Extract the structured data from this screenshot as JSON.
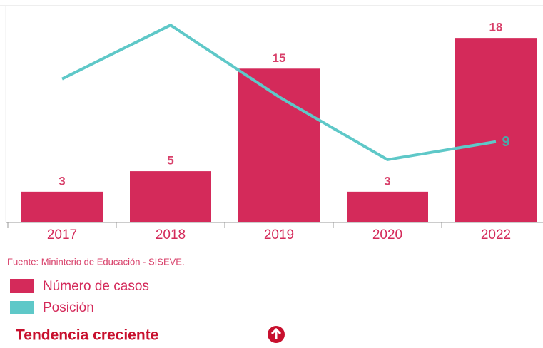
{
  "chart_data": {
    "type": "bar_line",
    "categories": [
      "2017",
      "2018",
      "2019",
      "2020",
      "2022"
    ],
    "series": [
      {
        "name": "Número de casos",
        "color": "#d42a5a",
        "values": [
          3,
          5,
          15,
          3,
          18
        ]
      },
      {
        "name": "Posición",
        "color": "#5ec8c8",
        "axis": "y2",
        "values": [
          16,
          22,
          14,
          7,
          9
        ],
        "value_labels": [
          null,
          null,
          null,
          null,
          "9"
        ]
      }
    ],
    "ylim": [
      0,
      21
    ],
    "y2lim": [
      0,
      24
    ],
    "source": "Fuente: Mininterio de Educación - SISEVE.",
    "trend": "Tendencia creciente"
  }
}
